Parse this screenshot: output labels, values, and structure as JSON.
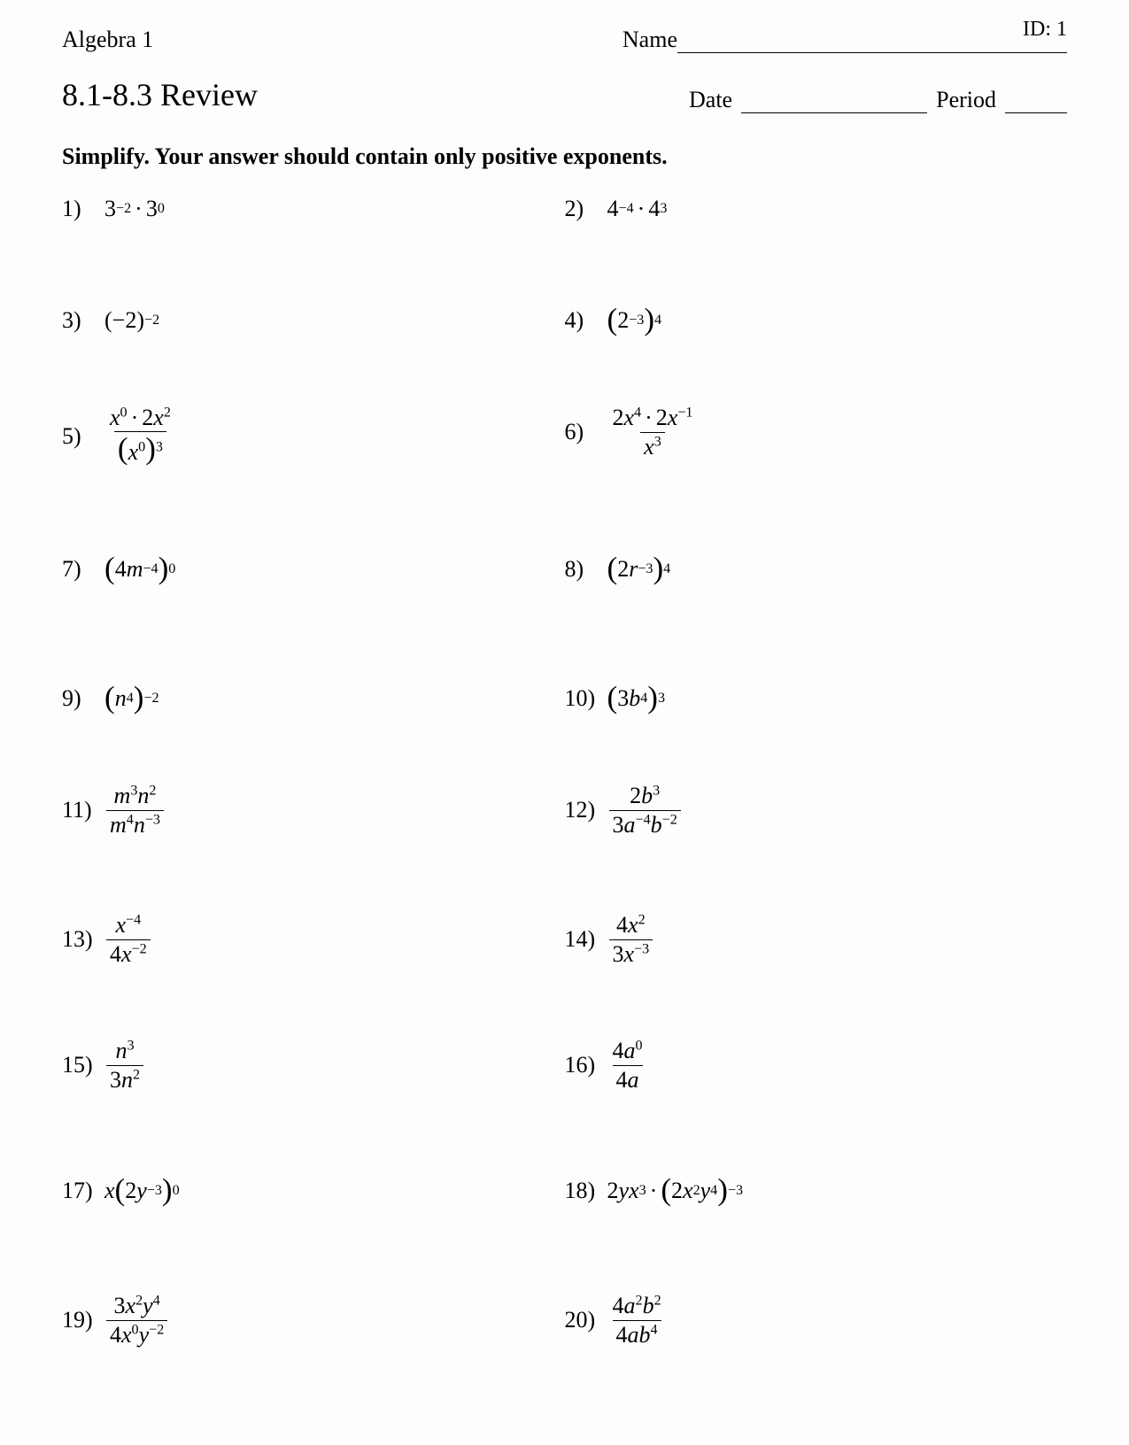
{
  "header": {
    "course": "Algebra 1",
    "id_label": "ID: 1",
    "name_label": "Name",
    "date_label": "Date",
    "period_label": "Period"
  },
  "title": "8.1-8.3 Review",
  "instructions": "Simplify.  Your answer should contain only positive exponents.",
  "problems": [
    {
      "n": "1)",
      "html": "<span class='rm'>3</span><sup>−2</sup><span class='dot'>·</span><span class='rm'>3</span><sup>0</sup>"
    },
    {
      "n": "2)",
      "html": "<span class='rm'>4</span><sup>−4</sup><span class='dot'>·</span><span class='rm'>4</span><sup>3</sup>"
    },
    {
      "n": "3)",
      "html": "<span class='rm'>(−2)</span><sup>−2</sup>"
    },
    {
      "n": "4)",
      "html": "<span class='paren'>(</span><span class='rm'>2</span><sup>−3</sup><span class='paren'>)</span><sup>4</sup>"
    },
    {
      "n": "5)",
      "html": "<span class='frac'><span class='num'><span class='var'>x</span><sup>0</sup><span class='dot'>·</span><span class='rm'>2</span><span class='var'>x</span><sup>2</sup></span><span class='den'><span class='paren'>(</span><span class='var'>x</span><sup>0</sup><span class='paren'>)</span><sup>3</sup></span></span>"
    },
    {
      "n": "6)",
      "html": "<span class='frac'><span class='num'><span class='rm'>2</span><span class='var'>x</span><sup>4</sup><span class='dot'>·</span><span class='rm'>2</span><span class='var'>x</span><sup>−1</sup></span><span class='den'><span class='var'>x</span><sup>3</sup></span></span>"
    },
    {
      "n": "7)",
      "html": "<span class='paren'>(</span><span class='rm'>4</span><span class='var'>m</span><sup>−4</sup><span class='paren'>)</span><sup>0</sup>"
    },
    {
      "n": "8)",
      "html": "<span class='paren'>(</span><span class='rm'>2</span><span class='var'>r</span><sup>−3</sup><span class='paren'>)</span><sup>4</sup>"
    },
    {
      "n": "9)",
      "html": "<span class='paren'>(</span><span class='var'>n</span><sup>4</sup><span class='paren'>)</span><sup>−2</sup>"
    },
    {
      "n": "10)",
      "html": "<span class='paren'>(</span><span class='rm'>3</span><span class='var'>b</span><sup>4</sup><span class='paren'>)</span><sup>3</sup>"
    },
    {
      "n": "11)",
      "html": "<span class='frac'><span class='num'><span class='var'>m</span><sup>3</sup><span class='var'>n</span><sup>2</sup></span><span class='den'><span class='var'>m</span><sup>4</sup><span class='var'>n</span><sup>−3</sup></span></span>"
    },
    {
      "n": "12)",
      "html": "<span class='frac'><span class='num'><span class='rm'>2</span><span class='var'>b</span><sup>3</sup></span><span class='den'><span class='rm'>3</span><span class='var'>a</span><sup>−4</sup><span class='var'>b</span><sup>−2</sup></span></span>"
    },
    {
      "n": "13)",
      "html": "<span class='frac'><span class='num'><span class='var'>x</span><sup>−4</sup></span><span class='den'><span class='rm'>4</span><span class='var'>x</span><sup>−2</sup></span></span>"
    },
    {
      "n": "14)",
      "html": "<span class='frac'><span class='num'><span class='rm'>4</span><span class='var'>x</span><sup>2</sup></span><span class='den'><span class='rm'>3</span><span class='var'>x</span><sup>−3</sup></span></span>"
    },
    {
      "n": "15)",
      "html": "<span class='frac'><span class='num'><span class='var'>n</span><sup>3</sup></span><span class='den'><span class='rm'>3</span><span class='var'>n</span><sup>2</sup></span></span>"
    },
    {
      "n": "16)",
      "html": "<span class='frac'><span class='num'><span class='rm'>4</span><span class='var'>a</span><sup>0</sup></span><span class='den'><span class='rm'>4</span><span class='var'>a</span></span></span>"
    },
    {
      "n": "17)",
      "html": "<span class='var'>x</span><span class='paren'>(</span><span class='rm'>2</span><span class='var'>y</span><sup>−3</sup><span class='paren'>)</span><sup>0</sup>"
    },
    {
      "n": "18)",
      "html": "<span class='rm'>2</span><span class='var'>yx</span><sup>3</sup><span class='dot'>·</span><span class='paren'>(</span><span class='rm'>2</span><span class='var'>x</span><sup>2</sup><span class='var'>y</span><sup>4</sup><span class='paren'>)</span><sup>−3</sup>"
    },
    {
      "n": "19)",
      "html": "<span class='frac'><span class='num'><span class='rm'>3</span><span class='var'>x</span><sup>2</sup><span class='var'>y</span><sup>4</sup></span><span class='den'><span class='rm'>4</span><span class='var'>x</span><sup>0</sup><span class='var'>y</span><sup>−2</sup></span></span>"
    },
    {
      "n": "20)",
      "html": "<span class='frac'><span class='num'><span class='rm'>4</span><span class='var'>a</span><sup>2</sup><span class='var'>b</span><sup>2</sup></span><span class='den'><span class='rm'>4</span><span class='var'>ab</span><sup>4</sup></span></span>"
    }
  ],
  "row_gaps": [
    "gap-sm",
    "gap-sm",
    "gap-md",
    "gap-md",
    "gap-sm",
    "gap-md",
    "gap-lg",
    "gap-lg",
    "gap-md",
    ""
  ],
  "colors": {
    "text": "#000000",
    "background": "#ffffff",
    "rule": "#000000"
  },
  "typography": {
    "body_fontsize_pt": 20,
    "title_fontsize_pt": 27,
    "font_family": "Times New Roman"
  }
}
